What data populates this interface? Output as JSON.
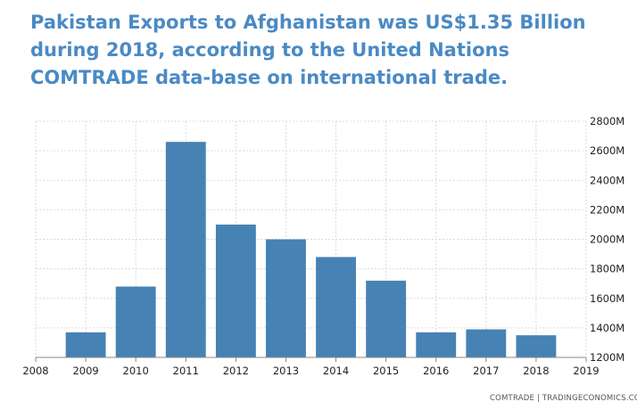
{
  "title": "Pakistan Exports to Afghanistan was US$1.35 Billion during 2018, according to the United Nations COMTRADE data-base on international trade.",
  "source": "COMTRADE | TRADINGECONOMICS.COM",
  "colors": {
    "bar": "#4682b4",
    "title": "#4a8ac4",
    "grid": "#d9d9d9"
  },
  "chart_data": {
    "type": "bar",
    "title": "Pakistan Exports to Afghanistan was US$1.35 Billion during 2018, according to the United Nations COMTRADE data-base on international trade.",
    "xlabel": "",
    "ylabel": "",
    "unit": "M",
    "categories": [
      "2009",
      "2010",
      "2011",
      "2012",
      "2013",
      "2014",
      "2015",
      "2016",
      "2017",
      "2018"
    ],
    "values": [
      1370,
      1680,
      2660,
      2100,
      2000,
      1880,
      1720,
      1370,
      1390,
      1350
    ],
    "xlim": [
      2008,
      2019
    ],
    "x_ticks": [
      "2008",
      "2009",
      "2010",
      "2011",
      "2012",
      "2013",
      "2014",
      "2015",
      "2016",
      "2017",
      "2018",
      "2019"
    ],
    "ylim": [
      1200,
      2800
    ],
    "y_ticks": [
      "1200M",
      "1400M",
      "1600M",
      "1800M",
      "2000M",
      "2200M",
      "2400M",
      "2600M",
      "2800M"
    ],
    "y_axis_side": "right",
    "grid": true
  }
}
